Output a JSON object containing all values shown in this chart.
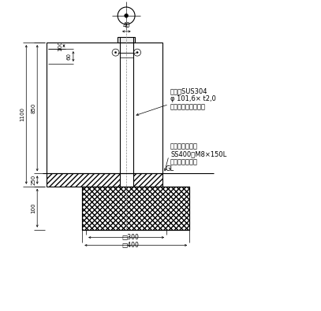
{
  "background_color": "#ffffff",
  "line_color": "#000000",
  "figure_width": 4.07,
  "figure_height": 3.95,
  "dpi": 100,
  "annotations": {
    "label_GL": "GL",
    "label_support1": "支住　SUS304",
    "label_support2": "φ 101,6× t2,0",
    "label_support3": "ヘアーライン仕上げ",
    "label_anchor1": "アンカーボルト",
    "label_anchor2": "SS400　M8×150L",
    "label_anchor3": "ユニクロメッキ"
  }
}
